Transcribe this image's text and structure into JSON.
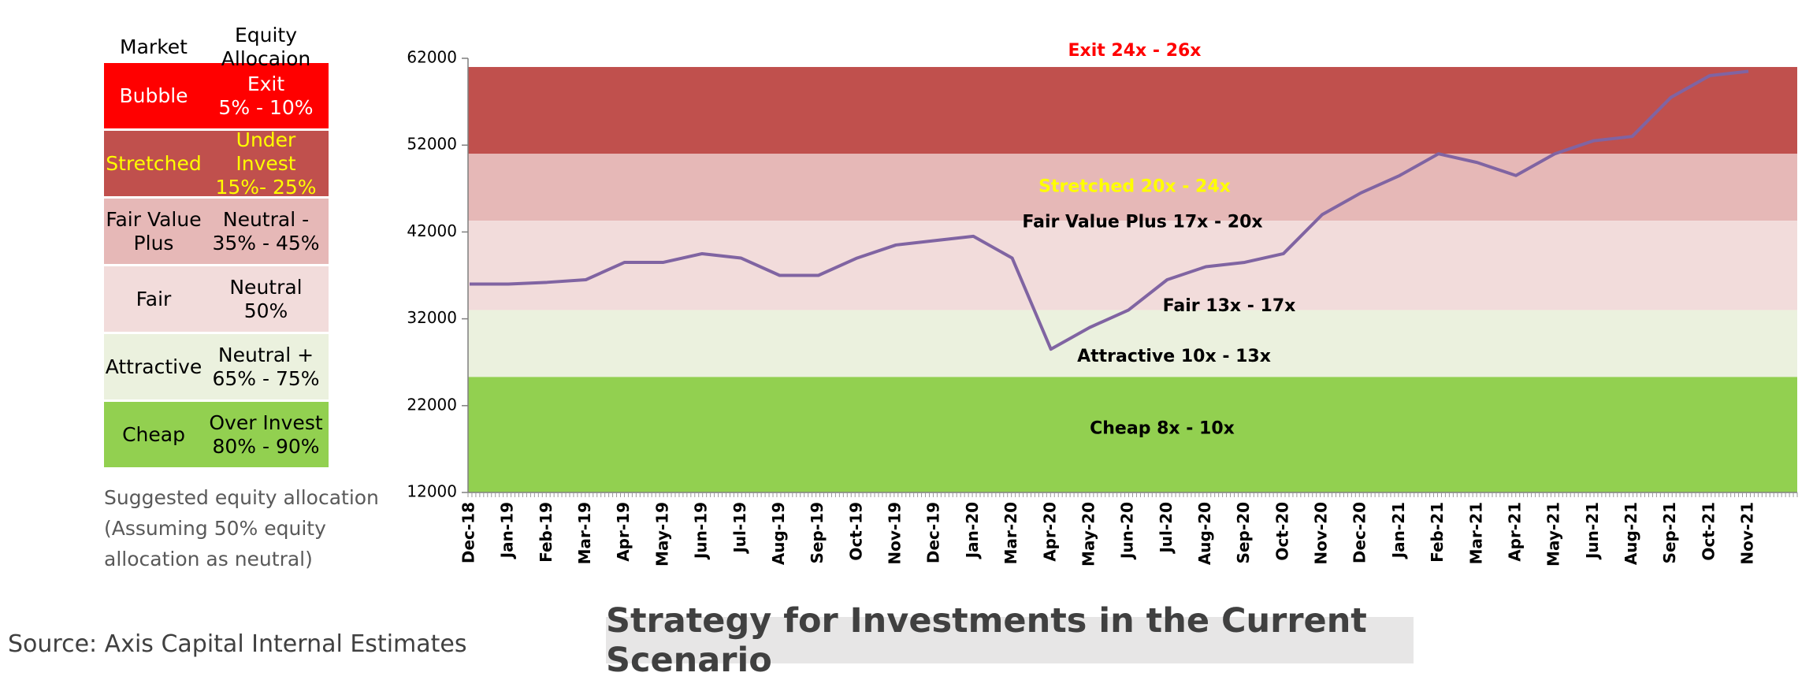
{
  "table": {
    "header": [
      "Market",
      "Equity Allocaion"
    ],
    "rows": [
      {
        "market": [
          "Bubble"
        ],
        "allocation": [
          "Exit",
          "5% - 10%"
        ],
        "color": "#ff0000",
        "text_color": "#ffffff"
      },
      {
        "market": [
          "Stretched"
        ],
        "allocation": [
          "Under Invest",
          "15%- 25%"
        ],
        "color": "#c0504d",
        "text_color": "#ffff00"
      },
      {
        "market": [
          "Fair Value",
          "Plus"
        ],
        "allocation": [
          "Neutral -",
          "35% - 45%"
        ],
        "color": "#e6b8b7",
        "text_color": "#000000"
      },
      {
        "market": [
          "Fair"
        ],
        "allocation": [
          "Neutral",
          "50%"
        ],
        "color": "#f2dcdb",
        "text_color": "#000000"
      },
      {
        "market": [
          "Attractive"
        ],
        "allocation": [
          "Neutral +",
          "65% - 75%"
        ],
        "color": "#ebf1de",
        "text_color": "#000000"
      },
      {
        "market": [
          "Cheap"
        ],
        "allocation": [
          "Over Invest",
          "80% - 90%"
        ],
        "color": "#92d050",
        "text_color": "#000000"
      }
    ],
    "note": [
      "Suggested equity allocation",
      "(Assuming 50% equity",
      "allocation as neutral)"
    ]
  },
  "source": "Source: Axis Capital Internal Estimates",
  "chart_data": {
    "type": "line",
    "title": "Strategy for Investments in the Current Scenario",
    "categories": [
      "Dec-18",
      "Jan-19",
      "Feb-19",
      "Mar-19",
      "Apr-19",
      "May-19",
      "Jun-19",
      "Jul-19",
      "Aug-19",
      "Sep-19",
      "Oct-19",
      "Nov-19",
      "Dec-19",
      "Jan-20",
      "Mar-20",
      "Apr-20",
      "May-20",
      "Jun-20",
      "Jul-20",
      "Aug-20",
      "Sep-20",
      "Oct-20",
      "Nov-20",
      "Dec-20",
      "Jan-21",
      "Feb-21",
      "Mar-21",
      "Apr-21",
      "May-21",
      "Jun-21",
      "Aug-21",
      "Sep-21",
      "Oct-21",
      "Nov-21"
    ],
    "series": [
      {
        "color": "#8064a2",
        "values": [
          36000,
          36000,
          36200,
          36500,
          38500,
          38500,
          39500,
          39000,
          37000,
          37000,
          39000,
          40500,
          41000,
          41500,
          39000,
          28500,
          31000,
          33000,
          36500,
          38000,
          38500,
          39500,
          44000,
          46500,
          48500,
          51000,
          50000,
          48500,
          51000,
          52500,
          53000,
          57500,
          60000,
          60500
        ]
      }
    ],
    "ylim": [
      12000,
      62000
    ],
    "yticks": [
      12000,
      22000,
      32000,
      42000,
      52000,
      62000
    ],
    "bands": [
      {
        "from": 51000,
        "to": 61000,
        "color": "#c0504d",
        "labels": [
          "Exit 24x - 26x"
        ],
        "label_color": "#ff0000"
      },
      {
        "from": 43300,
        "to": 51000,
        "color": "#e6b8b7",
        "labels": [
          "Stretched 20x - 24x"
        ],
        "label_color": "#ffff00"
      },
      {
        "from": 33000,
        "to": 43300,
        "color": "#f2dcdb",
        "labels": [
          "Fair Value Plus 17x - 20x",
          "Fair 13x - 17x"
        ],
        "label_color": "#000000"
      },
      {
        "from": 25300,
        "to": 33000,
        "color": "#ebf1de",
        "labels": [
          "Attractive  10x - 13x"
        ],
        "label_color": "#000000"
      },
      {
        "from": 12000,
        "to": 25300,
        "color": "#92d050",
        "labels": [
          "Cheap 8x - 10x"
        ],
        "label_color": "#000000"
      }
    ]
  }
}
